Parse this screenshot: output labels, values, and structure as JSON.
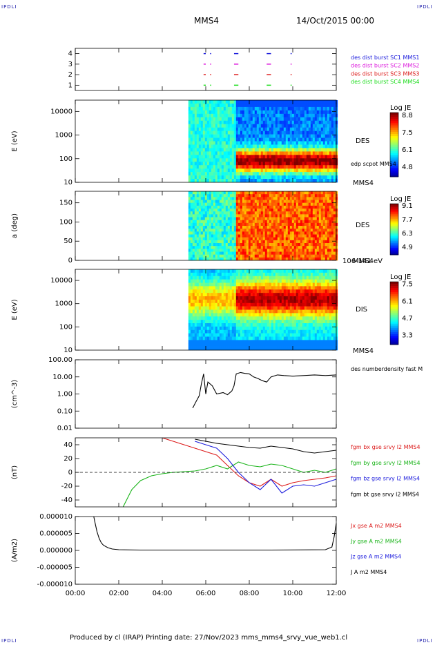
{
  "header": {
    "corner_tl": "IPDLI",
    "corner_tr": "IPDLI",
    "corner_bl": "IPDLI",
    "corner_br": "IPDLI",
    "spacecraft": "MMS4",
    "date": "14/Oct/2015 00:00"
  },
  "footer": "Produced by cl (IRAP)   Printing date: 27/Nov/2023   mms_mms4_srvy_vue_web1.cl",
  "chart_data": {
    "type": "multi-panel time series",
    "x_ticks": [
      "00:00",
      "02:00",
      "04:00",
      "06:00",
      "08:00",
      "10:00",
      "12:00"
    ],
    "x_range_hours": [
      0,
      12
    ],
    "panels": [
      {
        "id": "burst",
        "type": "scatter",
        "y_ticks": [
          "1",
          "2",
          "3",
          "4"
        ],
        "ylim": [
          0.5,
          4.5
        ],
        "legend": [
          {
            "name": "des dist burst SC1 MMS1",
            "color": "#1a1adc"
          },
          {
            "name": "des dist burst SC2 MMS2",
            "color": "#dc1adc"
          },
          {
            "name": "des dist burst SC3 MMS3",
            "color": "#dc1a1a"
          },
          {
            "name": "des dist burst SC4 MMS4",
            "color": "#1adc1a"
          }
        ],
        "segments_hours": [
          [
            5.9,
            6.0
          ],
          [
            6.2,
            6.25
          ],
          [
            7.3,
            7.5
          ],
          [
            8.8,
            9.0
          ],
          [
            9.9,
            9.95
          ]
        ]
      },
      {
        "id": "des-energy",
        "type": "heatmap",
        "ylabel": "E (eV)",
        "y_ticks": [
          "10",
          "100",
          "1000",
          "10000"
        ],
        "ylim": [
          10,
          30000
        ],
        "log": true,
        "label": "DES",
        "label2": "MMS4",
        "overlay": "edp scpot MMS4",
        "colorbar": {
          "title": "Log JE",
          "ticks": [
            "8.8",
            "7.5",
            "6.1",
            "4.8"
          ],
          "min": 4.8,
          "max": 8.8
        },
        "data_start_hour": 5.2
      },
      {
        "id": "des-pitch",
        "type": "heatmap",
        "ylabel": "a (deg)",
        "y_ticks": [
          "0",
          "50",
          "100",
          "150"
        ],
        "ylim": [
          0,
          180
        ],
        "label": "DES",
        "label2": "MMS4",
        "sublabel": "106-141 eV",
        "colorbar": {
          "title": "Log JE",
          "ticks": [
            "9.1",
            "7.7",
            "6.3",
            "4.9"
          ],
          "min": 4.9,
          "max": 9.1
        },
        "data_start_hour": 5.2
      },
      {
        "id": "dis-energy",
        "type": "heatmap",
        "ylabel": "E (eV)",
        "y_ticks": [
          "10",
          "100",
          "1000",
          "10000"
        ],
        "ylim": [
          10,
          30000
        ],
        "log": true,
        "label": "DIS",
        "label2": "MMS4",
        "colorbar": {
          "title": "Log JE",
          "ticks": [
            "7.5",
            "6.1",
            "4.7",
            "3.3"
          ],
          "min": 3.3,
          "max": 7.5
        },
        "data_start_hour": 5.2
      },
      {
        "id": "density",
        "type": "line",
        "ylabel": "(cm^-3)",
        "y_ticks": [
          "0.01",
          "0.10",
          "1.00",
          "10.00",
          "100.00"
        ],
        "ylim": [
          0.01,
          100
        ],
        "log": true,
        "legend": [
          {
            "name": "des numberdensity fast M",
            "color": "#000000"
          }
        ],
        "series": [
          {
            "name": "des numberdensity fast M",
            "color": "#000000",
            "x": [
              5.4,
              5.55,
              5.7,
              5.8,
              5.9,
              6.0,
              6.1,
              6.3,
              6.5,
              6.8,
              7.0,
              7.2,
              7.3,
              7.4,
              7.6,
              7.8,
              8.0,
              8.2,
              8.4,
              8.6,
              8.8,
              9.0,
              9.3,
              9.6,
              10.0,
              10.5,
              11.0,
              11.5,
              12.0
            ],
            "y": [
              0.15,
              0.35,
              0.8,
              4.0,
              15.0,
              1.0,
              5.0,
              3.0,
              1.0,
              1.2,
              0.9,
              1.5,
              3.0,
              15.0,
              18.0,
              16.0,
              15.0,
              10.0,
              8.0,
              6.0,
              5.0,
              10.0,
              13.0,
              12.0,
              11.0,
              12.0,
              13.0,
              12.0,
              13.0
            ]
          }
        ]
      },
      {
        "id": "fgm",
        "type": "line",
        "ylabel": "(nT)",
        "y_ticks": [
          "-40",
          "-20",
          "0",
          "20",
          "40"
        ],
        "ylim": [
          -50,
          50
        ],
        "zero_line": true,
        "legend": [
          {
            "name": "fgm bx gse srvy l2 MMS4",
            "color": "#dc1a1a"
          },
          {
            "name": "fgm by gse srvy l2 MMS4",
            "color": "#1ab41a"
          },
          {
            "name": "fgm bz gse srvy l2 MMS4",
            "color": "#1a1adc"
          },
          {
            "name": "fgm bt gse srvy l2 MMS4",
            "color": "#000000"
          }
        ],
        "series": [
          {
            "name": "fgm bx gse srvy l2 MMS4",
            "color": "#dc1a1a",
            "x": [
              4.0,
              4.5,
              5.0,
              5.5,
              6.0,
              6.5,
              7.0,
              7.5,
              8.0,
              8.5,
              9.0,
              9.5,
              10.0,
              10.5,
              11.0,
              11.5,
              12.0
            ],
            "y": [
              50,
              45,
              40,
              35,
              30,
              25,
              10,
              -5,
              -15,
              -20,
              -10,
              -20,
              -15,
              -12,
              -10,
              -8,
              -5
            ]
          },
          {
            "name": "fgm by gse srvy l2 MMS4",
            "color": "#1ab41a",
            "x": [
              2.2,
              2.6,
              3.0,
              3.5,
              4.0,
              4.5,
              5.0,
              5.5,
              6.0,
              6.5,
              7.0,
              7.5,
              8.0,
              8.5,
              9.0,
              9.5,
              10.0,
              10.5,
              11.0,
              11.5,
              12.0
            ],
            "y": [
              -50,
              -25,
              -12,
              -5,
              -2,
              0,
              1,
              2,
              5,
              10,
              5,
              15,
              10,
              8,
              12,
              10,
              5,
              0,
              3,
              0,
              5
            ]
          },
          {
            "name": "fgm bz gse srvy l2 MMS4",
            "color": "#1a1adc",
            "x": [
              5.5,
              6.0,
              6.5,
              7.0,
              7.5,
              8.0,
              8.5,
              9.0,
              9.5,
              10.0,
              10.5,
              11.0,
              11.5,
              12.0
            ],
            "y": [
              45,
              40,
              35,
              20,
              0,
              -15,
              -25,
              -10,
              -30,
              -20,
              -18,
              -20,
              -15,
              -10
            ]
          },
          {
            "name": "fgm bt gse srvy l2 MMS4",
            "color": "#000000",
            "x": [
              5.5,
              6.0,
              6.5,
              7.0,
              7.5,
              8.0,
              8.5,
              9.0,
              9.5,
              10.0,
              10.5,
              11.0,
              11.5,
              12.0
            ],
            "y": [
              48,
              45,
              42,
              40,
              38,
              36,
              35,
              38,
              36,
              34,
              30,
              28,
              30,
              32
            ]
          }
        ]
      },
      {
        "id": "current",
        "type": "line",
        "ylabel": "(A/m2)",
        "y_ticks": [
          "-0.000010",
          "-0.000005",
          "0.000000",
          "0.000005",
          "0.000010"
        ],
        "ylim": [
          -1e-05,
          1e-05
        ],
        "legend": [
          {
            "name": "Jx gse A m2 MMS4",
            "color": "#dc1a1a"
          },
          {
            "name": "Jy gse A m2 MMS4",
            "color": "#1ab41a"
          },
          {
            "name": "Jz gse A m2 MMS4",
            "color": "#1a1adc"
          },
          {
            "name": "J A m2 MMS4",
            "color": "#000000"
          }
        ],
        "series": [
          {
            "name": "J A m2 MMS4",
            "color": "#000000",
            "x": [
              0.85,
              0.9,
              1.0,
              1.1,
              1.2,
              1.3,
              1.5,
              1.7,
              2.0,
              3.0,
              6.0,
              9.0,
              11.5,
              11.8,
              11.9,
              12.0
            ],
            "y": [
              1e-05,
              8.5e-06,
              5.5e-06,
              3.5e-06,
              2.2e-06,
              1.5e-06,
              8e-07,
              4e-07,
              2e-07,
              1e-07,
              1e-07,
              1e-07,
              2e-07,
              1e-06,
              4e-06,
              8e-06
            ]
          }
        ]
      }
    ]
  }
}
